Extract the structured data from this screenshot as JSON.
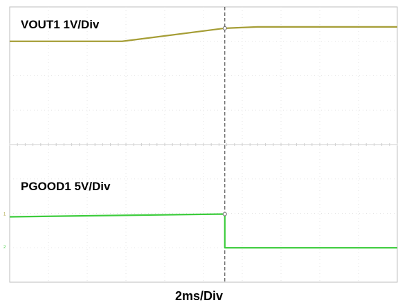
{
  "chart_data": {
    "type": "line",
    "x_divisions": 10,
    "y_divisions": 8,
    "grid": true,
    "x_unit": "div",
    "y_unit": "div",
    "trigger_x": 5.55,
    "time_label": "2ms/Div",
    "series": [
      {
        "name": "VOUT1 1V/Div",
        "color": "#a59d35",
        "x": [
          0,
          2.9,
          5.55,
          6.4,
          10
        ],
        "y": [
          7.0,
          7.0,
          7.38,
          7.42,
          7.42
        ]
      },
      {
        "name": "PGOOD1 5V/Div",
        "color": "#3ccc3c",
        "x": [
          0,
          5.55,
          5.55,
          10
        ],
        "y": [
          1.9,
          1.98,
          1.0,
          1.0
        ]
      }
    ],
    "markers": {
      "ch1_ground_level": 2.0,
      "ch2_ground_level": 1.05,
      "ch1_marker_text": "1",
      "ch2_marker_text": "2"
    }
  }
}
